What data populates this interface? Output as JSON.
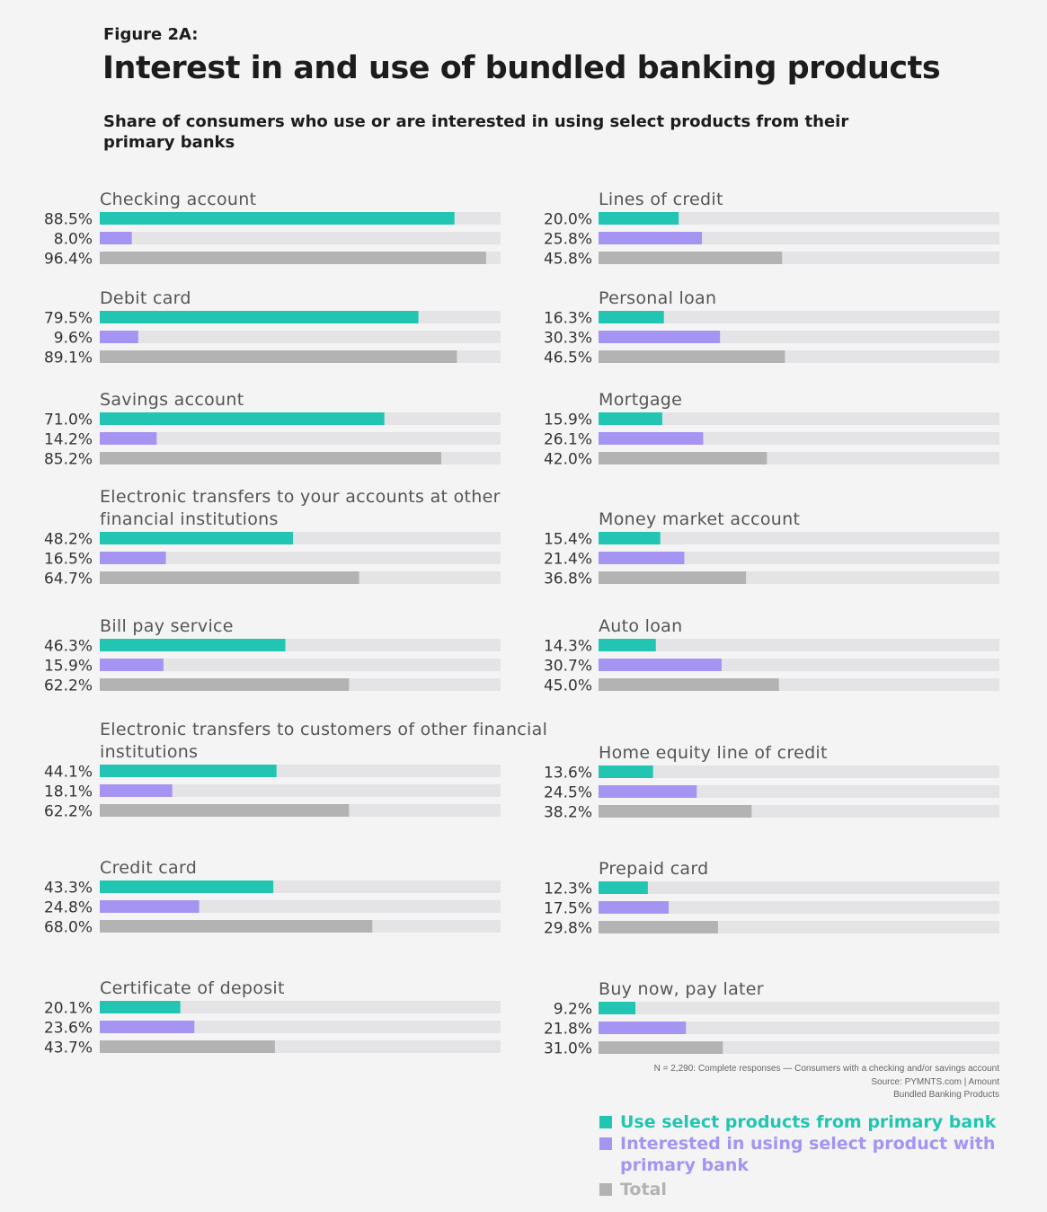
{
  "figure_label": "Figure 2A:",
  "title": "Interest in and use of bundled banking products",
  "subtitle": "Share of consumers who use or are interested in using select products from their primary banks",
  "footnote": {
    "line1": "N = 2,290: Complete responses — Consumers with a checking and/or savings account",
    "line2": "Source: PYMNTS.com  |  Amount",
    "line3": "Bundled Banking Products"
  },
  "colors": {
    "use": "#22c5b2",
    "interested": "#a694f3",
    "total": "#b3b3b3",
    "track": "#e4e4e7",
    "category_text": "#555555",
    "value_text": "#333333"
  },
  "legend": [
    {
      "label": "Use select products from primary bank",
      "color": "#22c5b2"
    },
    {
      "label": "Interested in using select product with primary bank",
      "color": "#a694f3"
    },
    {
      "label": "Total",
      "color": "#b3b3b3"
    }
  ],
  "chart_data": {
    "type": "bar",
    "orientation": "horizontal",
    "value_suffix": "%",
    "xlim": [
      0,
      100
    ],
    "series_names": [
      "Use select products from primary bank",
      "Interested in using select product with primary bank",
      "Total"
    ],
    "groups": [
      {
        "column": "left",
        "items": [
          {
            "category": "Checking account",
            "values": [
              88.5,
              8.0,
              96.4
            ],
            "labels": [
              "88.5%",
              "8.0%",
              "96.4%"
            ]
          },
          {
            "category": "Debit card",
            "values": [
              79.5,
              9.6,
              89.1
            ],
            "labels": [
              "79.5%",
              "9.6%",
              "89.1%"
            ]
          },
          {
            "category": "Savings account",
            "values": [
              71.0,
              14.2,
              85.2
            ],
            "labels": [
              "71.0%",
              "14.2%",
              "85.2%"
            ]
          },
          {
            "category": "Electronic transfers to your accounts at other financial institutions",
            "values": [
              48.2,
              16.5,
              64.7
            ],
            "labels": [
              "48.2%",
              "16.5%",
              "64.7%"
            ]
          },
          {
            "category": "Bill pay service",
            "values": [
              46.3,
              15.9,
              62.2
            ],
            "labels": [
              "46.3%",
              "15.9%",
              "62.2%"
            ]
          },
          {
            "category": "Electronic transfers to customers of other financial institutions",
            "values": [
              44.1,
              18.1,
              62.2
            ],
            "labels": [
              "44.1%",
              "18.1%",
              "62.2%"
            ]
          },
          {
            "category": "Credit card",
            "values": [
              43.3,
              24.8,
              68.0
            ],
            "labels": [
              "43.3%",
              "24.8%",
              "68.0%"
            ]
          },
          {
            "category": "Certificate of deposit",
            "values": [
              20.1,
              23.6,
              43.7
            ],
            "labels": [
              "20.1%",
              "23.6%",
              "43.7%"
            ]
          }
        ]
      },
      {
        "column": "right",
        "items": [
          {
            "category": "Lines of credit",
            "values": [
              20.0,
              25.8,
              45.8
            ],
            "labels": [
              "20.0%",
              "25.8%",
              "45.8%"
            ]
          },
          {
            "category": "Personal loan",
            "values": [
              16.3,
              30.3,
              46.5
            ],
            "labels": [
              "16.3%",
              "30.3%",
              "46.5%"
            ]
          },
          {
            "category": "Mortgage",
            "values": [
              15.9,
              26.1,
              42.0
            ],
            "labels": [
              "15.9%",
              "26.1%",
              "42.0%"
            ]
          },
          {
            "category": "Money market account",
            "values": [
              15.4,
              21.4,
              36.8
            ],
            "labels": [
              "15.4%",
              "21.4%",
              "36.8%"
            ]
          },
          {
            "category": "Auto loan",
            "values": [
              14.3,
              30.7,
              45.0
            ],
            "labels": [
              "14.3%",
              "30.7%",
              "45.0%"
            ]
          },
          {
            "category": "Home equity line of credit",
            "values": [
              13.6,
              24.5,
              38.2
            ],
            "labels": [
              "13.6%",
              "24.5%",
              "38.2%"
            ]
          },
          {
            "category": "Prepaid card",
            "values": [
              12.3,
              17.5,
              29.8
            ],
            "labels": [
              "12.3%",
              "17.5%",
              "29.8%"
            ]
          },
          {
            "category": "Buy now, pay later",
            "values": [
              9.2,
              21.8,
              31.0
            ],
            "labels": [
              "9.2%",
              "21.8%",
              "31.0%"
            ]
          }
        ]
      }
    ]
  }
}
